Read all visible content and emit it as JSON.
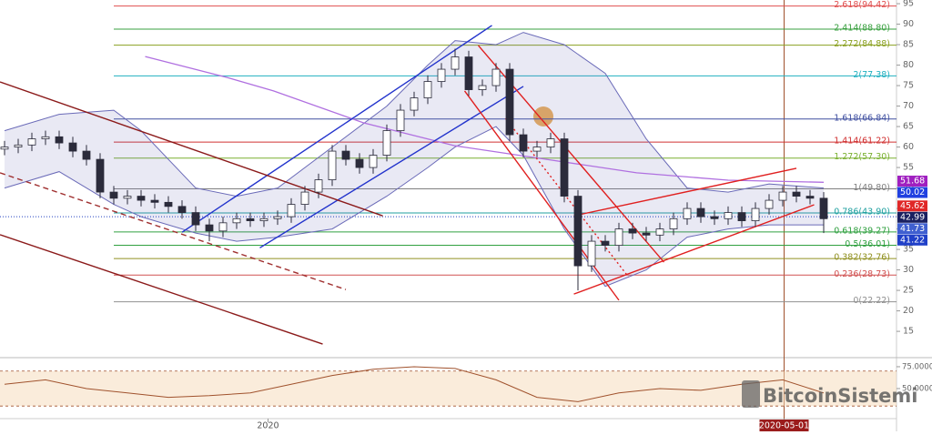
{
  "chart_data": {
    "type": "candlestick",
    "xlim": [
      -0.333,
      65.333
    ],
    "ylim": [
      8.8,
      95.9
    ],
    "yticks": [
      15,
      20,
      25,
      30,
      35,
      40,
      45,
      50,
      55,
      60,
      65,
      70,
      75,
      80,
      85,
      90,
      95
    ],
    "xticks": [
      {
        "value": 19.3,
        "label": "2020"
      },
      {
        "value": 57.1,
        "label": "2020-05-01"
      }
    ],
    "up_color": "#ffffff",
    "down_color": "#2b2b3b",
    "open": [
      59.5,
      60,
      60.5,
      62,
      62.5,
      61,
      59,
      57,
      49,
      47.5,
      48,
      47,
      46.5,
      45.5,
      44,
      41,
      39.5,
      41.5,
      42.5,
      42,
      42.5,
      43,
      46,
      49,
      52,
      59,
      57,
      55,
      58,
      64,
      69,
      72,
      76,
      79,
      82,
      74,
      75,
      79,
      63,
      59,
      60,
      62,
      48,
      31,
      37,
      36,
      40,
      39,
      38.5,
      40,
      42.5,
      45,
      43,
      42.5,
      44,
      42,
      45,
      47,
      49,
      48,
      47.5
    ],
    "high": [
      61.5,
      62,
      63.5,
      64,
      64,
      62.5,
      60.5,
      58.5,
      50.5,
      49.5,
      49.5,
      48.5,
      48,
      47,
      45.5,
      42.5,
      43,
      44,
      44,
      44,
      44.5,
      47.5,
      50.5,
      53.5,
      60.5,
      60.5,
      58.5,
      59.5,
      65.5,
      70.5,
      73.5,
      77.5,
      80.5,
      84,
      83.5,
      76.5,
      80.5,
      80.5,
      64.5,
      61.5,
      63.5,
      63.5,
      49.5,
      38.5,
      38.5,
      41.5,
      41.5,
      40.5,
      41.5,
      44,
      46.5,
      46.5,
      44.5,
      45.5,
      45.5,
      46.5,
      48.5,
      50.5,
      50.5,
      49.5,
      49
    ],
    "low": [
      58,
      58.5,
      59,
      60.5,
      59.5,
      57.5,
      55.5,
      47.5,
      46,
      46,
      45.5,
      45,
      44,
      42.5,
      39.5,
      37,
      38,
      40,
      40.5,
      40.5,
      41,
      41.5,
      44.5,
      47.5,
      50.5,
      55.5,
      53.5,
      53.5,
      56.5,
      62.5,
      67.5,
      70.5,
      74.5,
      77.5,
      72.5,
      72.5,
      73.5,
      61.5,
      57.5,
      57.5,
      58.5,
      46.5,
      25,
      29.5,
      34.5,
      34.5,
      37.5,
      37,
      37,
      38.5,
      41,
      41.5,
      41,
      41,
      40.5,
      40.5,
      43.5,
      45.5,
      46.5,
      46,
      39
    ],
    "close": [
      60,
      60.5,
      62,
      62.5,
      61,
      59,
      57,
      49,
      47.5,
      48,
      47,
      46.5,
      45.5,
      44,
      41,
      39.5,
      41.5,
      42.5,
      42,
      42.5,
      43,
      46,
      49,
      52,
      59,
      57,
      55,
      58,
      64,
      69,
      72,
      76,
      79,
      82,
      74,
      75,
      79,
      63,
      59,
      60,
      62,
      48,
      31,
      37,
      36,
      40,
      39,
      38.5,
      40,
      42.5,
      45,
      43,
      42.5,
      44,
      42,
      45,
      47,
      49,
      48,
      47.5,
      42.5
    ],
    "bands": {
      "color": "#6a6ab8",
      "x": [
        0,
        4,
        8,
        10,
        14,
        17,
        20,
        24,
        28,
        31,
        33,
        36,
        38,
        41,
        44,
        47,
        50,
        53,
        56,
        60
      ],
      "upper": [
        64,
        68,
        69,
        64,
        50,
        48,
        50,
        60,
        70,
        80,
        86,
        85,
        88,
        85,
        78,
        62,
        50,
        49,
        51,
        50
      ],
      "lower": [
        50,
        54,
        46,
        43,
        39,
        37,
        38,
        40,
        48,
        55,
        60,
        65,
        58,
        40,
        26,
        30,
        38,
        40,
        41,
        41
      ]
    },
    "long_ma": {
      "color": "#b070e0",
      "x": [
        10.3,
        16.3,
        19.7,
        26.3,
        33,
        39.7,
        46.3,
        53,
        60
      ],
      "values": [
        82.1,
        77,
        73.7,
        65.9,
        60.3,
        57,
        53.7,
        51.9,
        51.4
      ]
    },
    "trendlines": [
      {
        "color": "#2233cc",
        "style": "solid",
        "x": [
          13,
          35.7
        ],
        "y": [
          39.2,
          89.7
        ]
      },
      {
        "color": "#2233cc",
        "style": "solid",
        "x": [
          18.7,
          38
        ],
        "y": [
          35.4,
          74.8
        ]
      },
      {
        "color": "#8b1a1a",
        "style": "solid",
        "x": [
          -0.33,
          27.7
        ],
        "y": [
          75.9,
          43.2
        ]
      },
      {
        "color": "#8b1a1a",
        "style": "solid",
        "x": [
          -0.33,
          23.3
        ],
        "y": [
          38.6,
          11.9
        ]
      },
      {
        "color": "#a03030",
        "style": "dashed",
        "x": [
          -0.33,
          25
        ],
        "y": [
          53.7,
          25.2
        ]
      },
      {
        "color": "#e02020",
        "style": "solid",
        "x": [
          34.7,
          48.3
        ],
        "y": [
          84.8,
          31.9
        ]
      },
      {
        "color": "#e02020",
        "style": "solid",
        "x": [
          33.7,
          45
        ],
        "y": [
          73.7,
          22.6
        ]
      },
      {
        "color": "#e02020",
        "style": "solid",
        "x": [
          41.7,
          58
        ],
        "y": [
          43.2,
          54.8
        ]
      },
      {
        "color": "#e02020",
        "style": "solid",
        "x": [
          41.7,
          59.3
        ],
        "y": [
          24.1,
          45.9
        ]
      },
      {
        "color": "#e02020",
        "style": "dotted",
        "x": [
          36.7,
          45.7
        ],
        "y": [
          67,
          28.3
        ]
      }
    ],
    "fib_levels": [
      {
        "value": 94.42,
        "label": "2.618(94.42)",
        "color": "#e05050"
      },
      {
        "value": 88.8,
        "label": "2.414(88.80)",
        "color": "#3aa040"
      },
      {
        "value": 84.88,
        "label": "2.272(84.88)",
        "color": "#8aa020"
      },
      {
        "value": 77.38,
        "label": "2(77.38)",
        "color": "#20b0c0"
      },
      {
        "value": 66.84,
        "label": "1.618(66.84)",
        "color": "#4050a0"
      },
      {
        "value": 61.22,
        "label": "1.414(61.22)",
        "color": "#d03030"
      },
      {
        "value": 57.3,
        "label": "1.272(57.30)",
        "color": "#7ab030"
      },
      {
        "value": 49.8,
        "label": "1(49.80)",
        "color": "#808080"
      },
      {
        "value": 43.9,
        "label": "0.786(43.90)",
        "color": "#20a0a0"
      },
      {
        "value": 39.27,
        "label": "0.618(39.27)",
        "color": "#30a040"
      },
      {
        "value": 36.01,
        "label": "0.5(36.01)",
        "color": "#30a040"
      },
      {
        "value": 32.76,
        "label": "0.382(32.76)",
        "color": "#909020"
      },
      {
        "value": 28.73,
        "label": "0.236(28.73)",
        "color": "#d05050"
      },
      {
        "value": 22.22,
        "label": "0(22.22)",
        "color": "#909090"
      }
    ],
    "price_labels": [
      {
        "value": 51.68,
        "color": "#a020c0"
      },
      {
        "value": 50.02,
        "color": "#2040e0"
      },
      {
        "value": 45.62,
        "color": "#e02828"
      },
      {
        "value": 42.99,
        "color": "#1a2060"
      },
      {
        "value": 41.73,
        "color": "#4060d0"
      },
      {
        "value": 41.22,
        "color": "#2040c8"
      }
    ],
    "date_marker": 57.1,
    "rsi": {
      "color": "#a0522d",
      "x": [
        0,
        3,
        6,
        9,
        12,
        15,
        18,
        21,
        24,
        27,
        30,
        33,
        36,
        39,
        42,
        45,
        48,
        51,
        54,
        57,
        60
      ],
      "values": [
        55,
        60,
        50,
        45,
        40,
        42,
        45,
        55,
        65,
        72,
        75,
        73,
        60,
        40,
        35,
        45,
        50,
        48,
        55,
        60,
        45
      ],
      "ylim": [
        15.6,
        83.3
      ],
      "band": [
        30,
        70
      ],
      "yticks": [
        {
          "value": 75,
          "label": "75.0000"
        },
        {
          "value": 50,
          "label": "50.0000"
        }
      ]
    },
    "watermark": "BitcoinSistemi"
  }
}
